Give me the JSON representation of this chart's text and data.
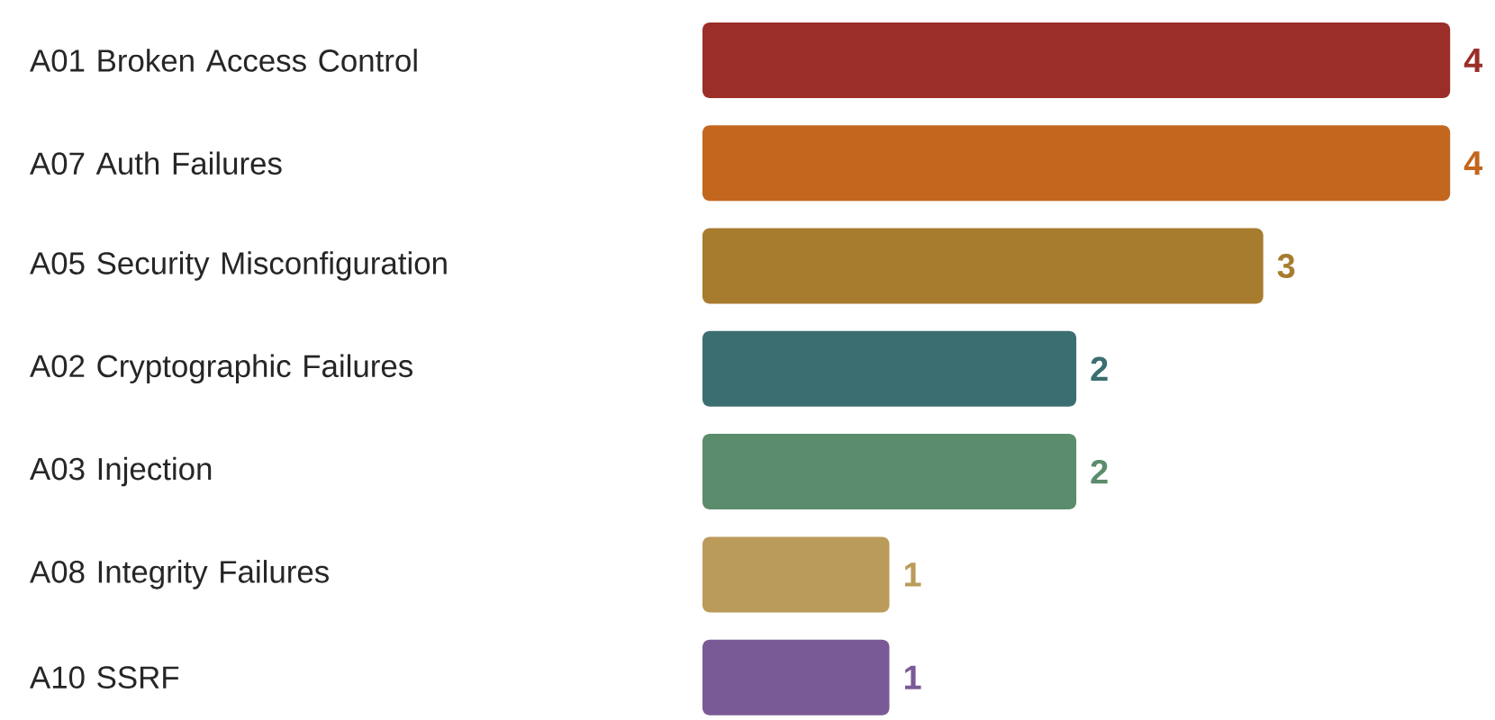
{
  "chart_data": {
    "type": "bar",
    "orientation": "horizontal",
    "categories": [
      "A01 Broken Access Control",
      "A07 Auth Failures",
      "A05 Security Misconfiguration",
      "A02 Cryptographic Failures",
      "A03 Injection",
      "A08 Integrity Failures",
      "A10 SSRF"
    ],
    "values": [
      4,
      4,
      3,
      2,
      2,
      1,
      1
    ],
    "colors": [
      "#9b2e29",
      "#c3661e",
      "#a77c2e",
      "#3b6e70",
      "#5b8c6c",
      "#bb9b5a",
      "#7a5a96"
    ],
    "data_labels": true
  }
}
